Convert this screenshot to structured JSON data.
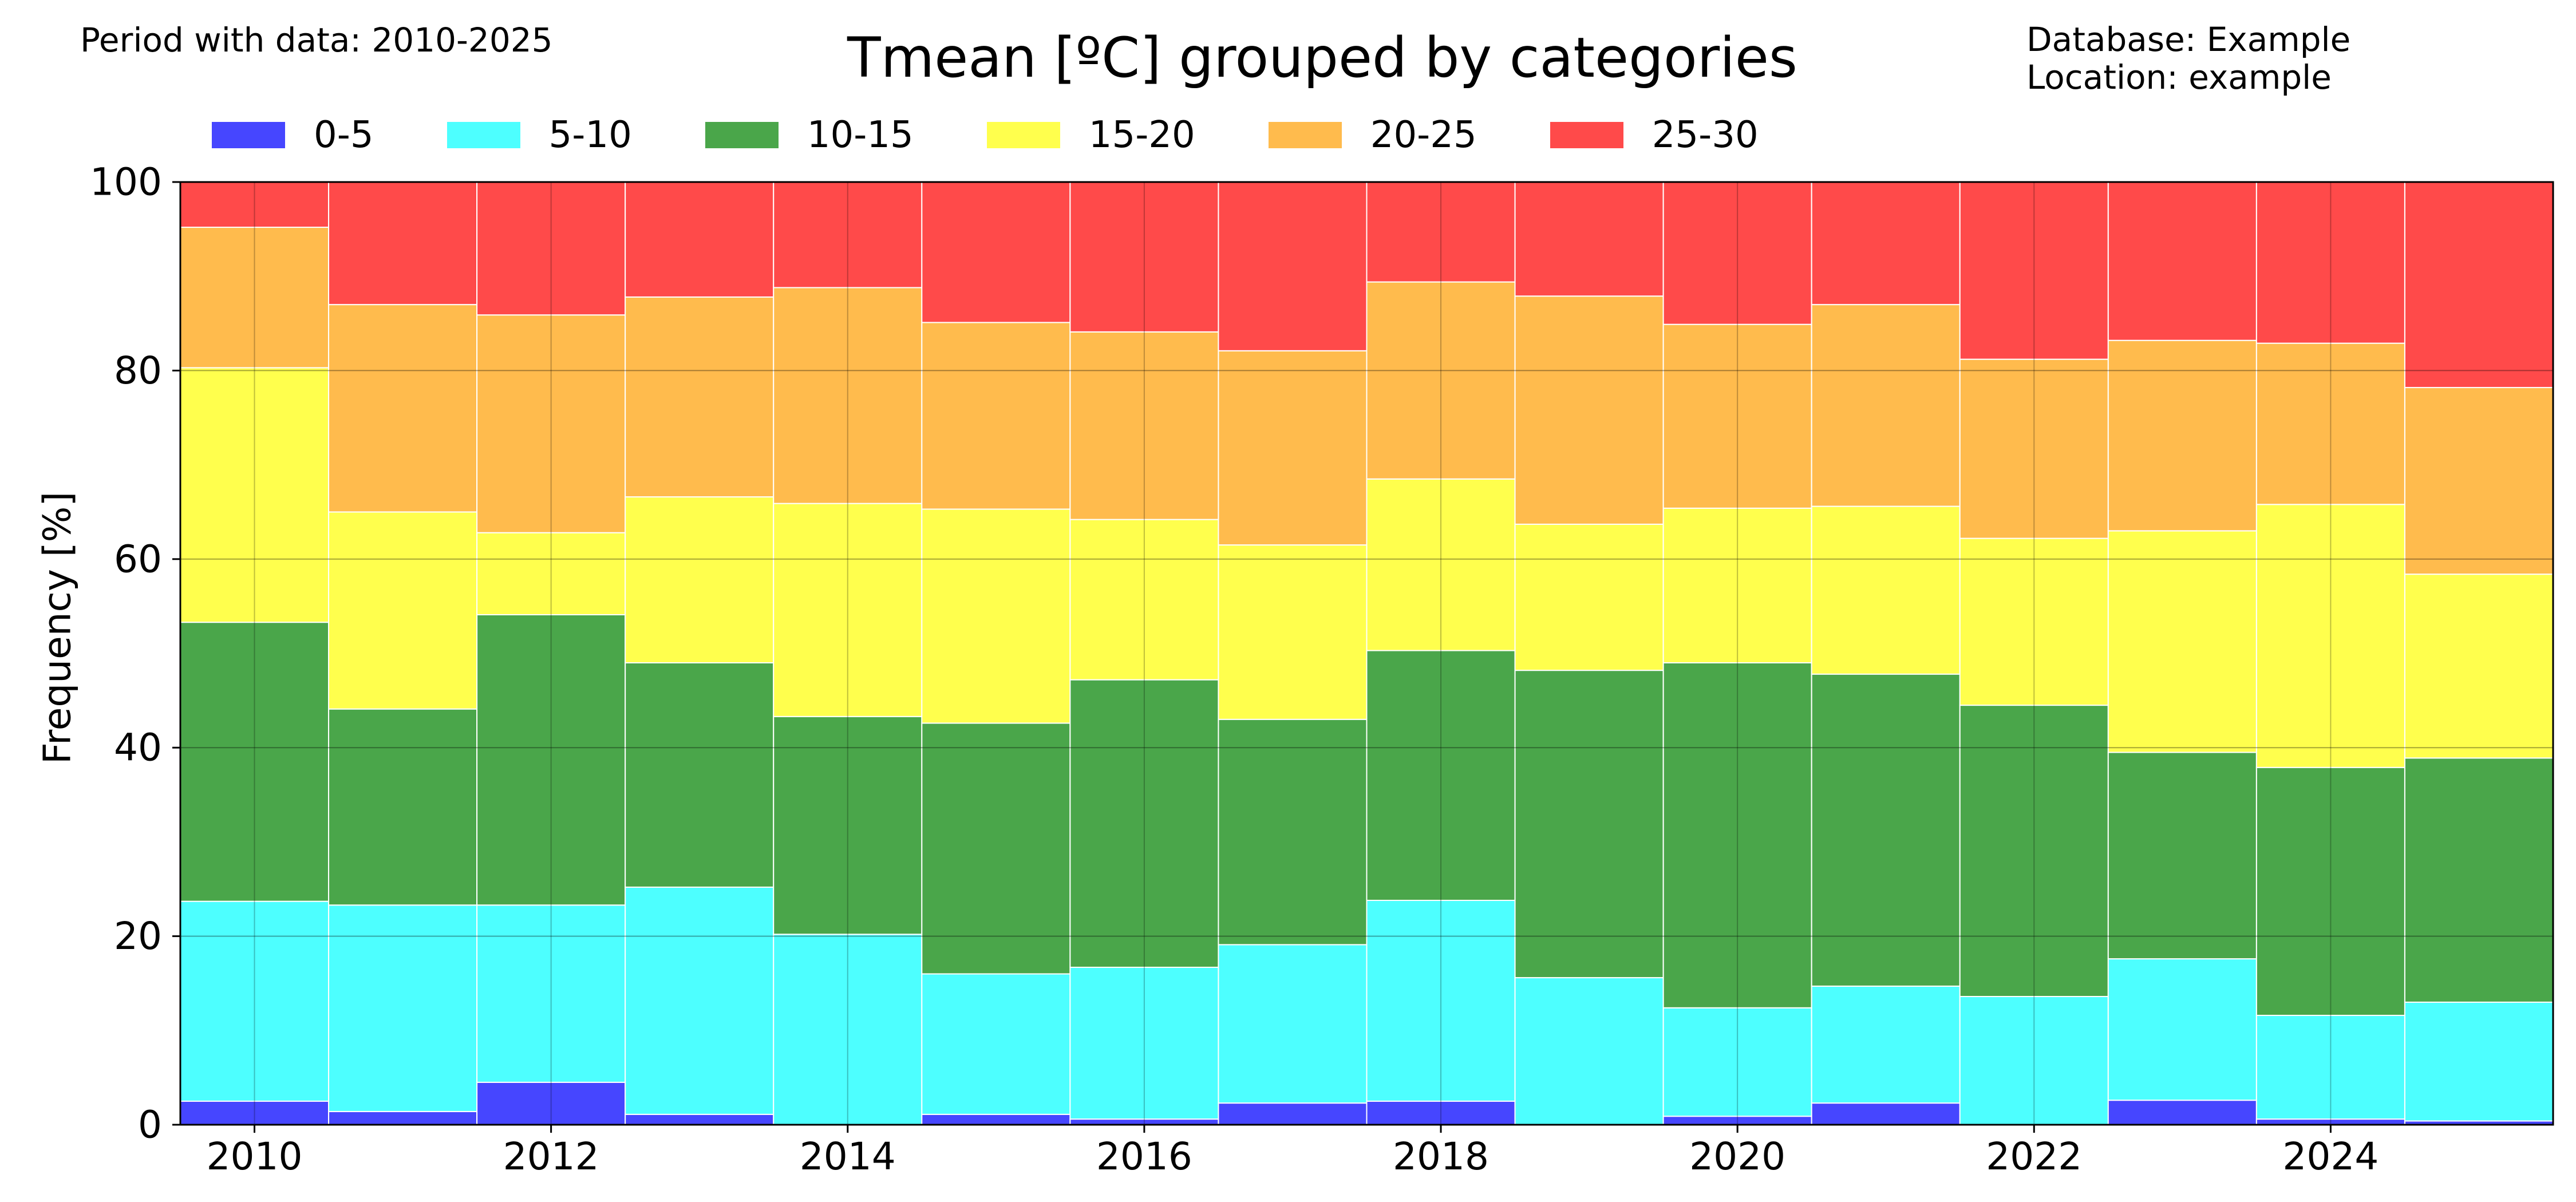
{
  "header": {
    "period": "Period with data: 2010-2025",
    "title": "Tmean [ºC] grouped by categories",
    "database": "Database: Example",
    "location": "Location: example"
  },
  "chart_data": {
    "type": "bar",
    "stacked": true,
    "title": "Tmean [ºC] grouped by categories",
    "xlabel": "",
    "ylabel": "Frequency [%]",
    "ylim": [
      0,
      100
    ],
    "xlim": [
      2009.5,
      2025.5
    ],
    "grid": true,
    "legend_position": "top",
    "categories": [
      2010,
      2011,
      2012,
      2013,
      2014,
      2015,
      2016,
      2017,
      2018,
      2019,
      2020,
      2021,
      2022,
      2023,
      2024,
      2025
    ],
    "x_ticks": [
      "2010",
      "2012",
      "2014",
      "2016",
      "2018",
      "2020",
      "2022",
      "2024"
    ],
    "y_ticks": [
      "0",
      "20",
      "40",
      "60",
      "80",
      "100"
    ],
    "series": [
      {
        "name": "0-5",
        "color": "#4646ff",
        "values": [
          2.5,
          1.4,
          4.5,
          1.1,
          0.0,
          1.1,
          0.6,
          2.3,
          2.5,
          0.0,
          0.9,
          2.3,
          0.0,
          2.6,
          0.6,
          0.4
        ]
      },
      {
        "name": "5-10",
        "color": "#4dffff",
        "values": [
          21.2,
          21.9,
          18.8,
          24.1,
          20.2,
          14.9,
          16.1,
          16.8,
          21.3,
          15.6,
          11.5,
          12.4,
          13.6,
          15.0,
          11.0,
          12.6
        ]
      },
      {
        "name": "10-15",
        "color": "#4aa64a",
        "values": [
          29.6,
          20.8,
          30.8,
          23.8,
          23.1,
          26.6,
          30.5,
          23.9,
          26.5,
          32.6,
          36.6,
          33.1,
          30.9,
          21.9,
          26.3,
          25.9
        ]
      },
      {
        "name": "15-20",
        "color": "#ffff4d",
        "values": [
          27.0,
          20.9,
          8.7,
          17.6,
          22.6,
          22.7,
          17.0,
          18.5,
          18.2,
          15.5,
          16.4,
          17.8,
          17.7,
          23.5,
          27.9,
          19.5
        ]
      },
      {
        "name": "20-25",
        "color": "#ffbb4d",
        "values": [
          14.9,
          22.0,
          23.1,
          21.2,
          22.9,
          19.8,
          19.9,
          20.6,
          20.9,
          24.2,
          19.5,
          21.4,
          19.0,
          20.2,
          17.1,
          19.8
        ]
      },
      {
        "name": "25-30",
        "color": "#ff4a4a",
        "values": [
          4.8,
          13.0,
          14.1,
          12.2,
          11.2,
          14.9,
          15.9,
          17.9,
          10.6,
          12.1,
          15.1,
          13.0,
          18.8,
          16.8,
          17.1,
          21.8
        ]
      }
    ]
  }
}
